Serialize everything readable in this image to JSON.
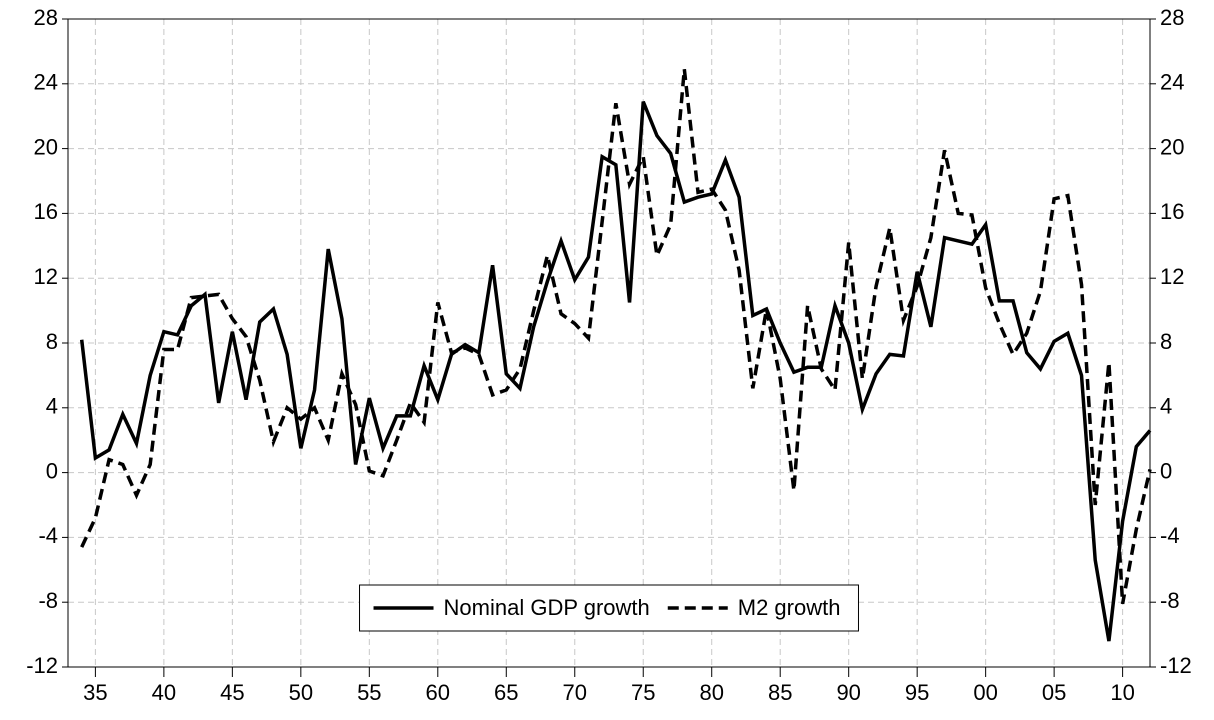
{
  "chart_data": {
    "type": "line",
    "x": [
      1934,
      1935,
      1936,
      1937,
      1938,
      1939,
      1940,
      1941,
      1942,
      1943,
      1944,
      1945,
      1946,
      1947,
      1948,
      1949,
      1950,
      1951,
      1952,
      1953,
      1954,
      1955,
      1956,
      1957,
      1958,
      1959,
      1960,
      1961,
      1962,
      1963,
      1964,
      1965,
      1966,
      1967,
      1968,
      1969,
      1970,
      1971,
      1972,
      1973,
      1974,
      1975,
      1976,
      1977,
      1978,
      1979,
      1980,
      1981,
      1982,
      1983,
      1984,
      1985,
      1986,
      1987,
      1988,
      1989,
      1990,
      1991,
      1992,
      1993,
      1994,
      1995,
      1996,
      1997,
      1998,
      1999,
      2000,
      2001,
      2002,
      2003,
      2004,
      2005,
      2006,
      2007,
      2008,
      2009,
      2010,
      2011,
      2012
    ],
    "series": [
      {
        "name": "Nominal GDP growth",
        "color": "#000000",
        "line_style": "solid",
        "values": [
          8.2,
          0.9,
          1.4,
          3.6,
          1.8,
          6.0,
          8.7,
          8.5,
          10.3,
          11.0,
          4.3,
          8.7,
          4.5,
          9.3,
          10.1,
          7.3,
          1.5,
          5.1,
          13.8,
          9.5,
          0.5,
          4.6,
          1.5,
          3.5,
          3.5,
          6.6,
          4.5,
          7.3,
          7.9,
          7.4,
          12.8,
          6.1,
          5.2,
          9.0,
          11.8,
          14.3,
          11.9,
          13.3,
          19.5,
          19.0,
          10.5,
          22.9,
          20.8,
          19.7,
          16.7,
          17.0,
          17.2,
          19.3,
          17.0,
          9.7,
          10.1,
          8.0,
          6.2,
          6.5,
          6.5,
          10.3,
          8.0,
          3.9,
          6.1,
          7.3,
          7.2,
          12.4,
          9.0,
          14.5,
          14.3,
          14.1,
          15.3,
          10.6,
          10.6,
          7.4,
          6.4,
          8.1,
          8.6,
          6.0,
          -5.4,
          -10.4,
          -3.0,
          1.6,
          2.6
        ]
      },
      {
        "name": "M2 growth",
        "color": "#000000",
        "line_style": "dashed",
        "values": [
          -4.6,
          -2.8,
          0.8,
          0.5,
          -1.4,
          0.5,
          7.6,
          7.6,
          10.8,
          10.9,
          11.0,
          9.5,
          8.4,
          5.7,
          1.9,
          4.0,
          3.3,
          4.0,
          2.0,
          6.1,
          4.2,
          0.1,
          -0.2,
          2.0,
          4.3,
          3.1,
          10.5,
          7.4,
          7.7,
          7.3,
          4.8,
          5.1,
          6.4,
          10.0,
          13.4,
          9.8,
          9.2,
          8.3,
          15.5,
          22.8,
          17.8,
          19.5,
          13.4,
          15.3,
          24.9,
          17.3,
          17.5,
          16.2,
          12.5,
          5.2,
          10.1,
          5.8,
          -1.1,
          10.3,
          6.4,
          5.1,
          14.2,
          5.8,
          11.5,
          15.1,
          9.4,
          11.5,
          14.5,
          19.9,
          16.0,
          15.9,
          11.4,
          9.2,
          7.3,
          8.6,
          11.2,
          16.9,
          17.1,
          11.6,
          -2.0,
          6.8,
          -8.1,
          -3.5,
          0.2
        ]
      }
    ],
    "xlim": [
      1933,
      2012
    ],
    "xticks": [
      {
        "value": 1935,
        "label": "35"
      },
      {
        "value": 1940,
        "label": "40"
      },
      {
        "value": 1945,
        "label": "45"
      },
      {
        "value": 1950,
        "label": "50"
      },
      {
        "value": 1955,
        "label": "55"
      },
      {
        "value": 1960,
        "label": "60"
      },
      {
        "value": 1965,
        "label": "65"
      },
      {
        "value": 1970,
        "label": "70"
      },
      {
        "value": 1975,
        "label": "75"
      },
      {
        "value": 1980,
        "label": "80"
      },
      {
        "value": 1985,
        "label": "85"
      },
      {
        "value": 1990,
        "label": "90"
      },
      {
        "value": 1995,
        "label": "95"
      },
      {
        "value": 2000,
        "label": "00"
      },
      {
        "value": 2005,
        "label": "05"
      },
      {
        "value": 2010,
        "label": "10"
      }
    ],
    "ylim": [
      -12,
      28
    ],
    "yticks": [
      -12,
      -8,
      -4,
      0,
      4,
      8,
      12,
      16,
      20,
      24,
      28
    ],
    "y2lim": [
      -12,
      28
    ],
    "y2ticks": [
      -12,
      -8,
      -4,
      0,
      4,
      8,
      12,
      16,
      20,
      24,
      28
    ],
    "grid": true,
    "legend": "bottom"
  }
}
